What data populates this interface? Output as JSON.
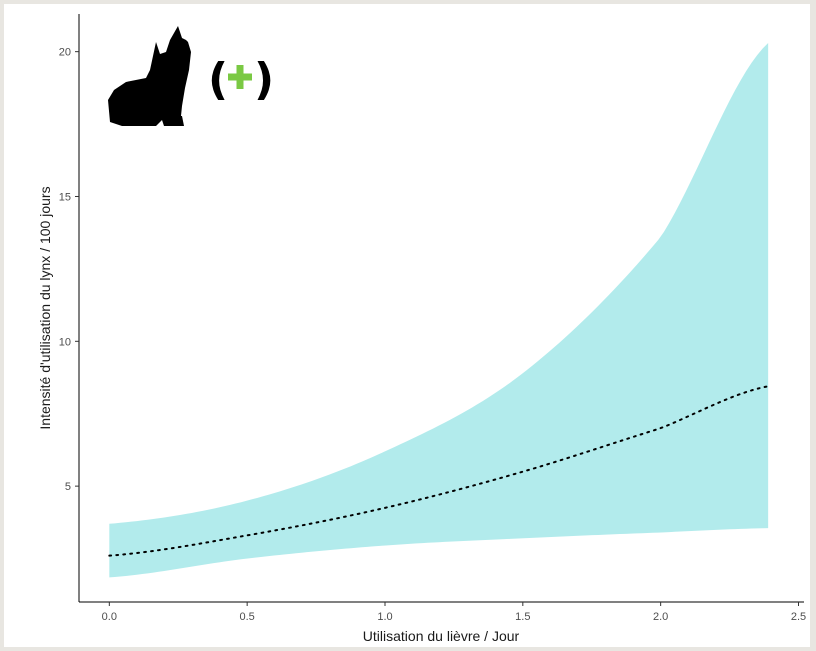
{
  "chart_data": {
    "type": "line",
    "title": "",
    "xlabel": "Utilisation du lièvre / Jour",
    "ylabel": "Intensité d'utilisation du lynx / 100 jours",
    "xlim": [
      -0.11,
      2.52
    ],
    "ylim": [
      1.0,
      21.3
    ],
    "x_ticks": [
      0.0,
      0.5,
      1.0,
      1.5,
      2.0,
      2.5
    ],
    "x_tick_labels": [
      "0.0",
      "0.5",
      "1.0",
      "1.5",
      "2.0",
      "2.5"
    ],
    "y_ticks": [
      5,
      10,
      15,
      20
    ],
    "y_tick_labels": [
      "5",
      "10",
      "15",
      "20"
    ],
    "grid": false,
    "series": [
      {
        "kind": "estimate",
        "line_style": "dotted",
        "color": "#000000",
        "x": [
          0.0,
          0.5,
          1.0,
          1.5,
          2.0,
          2.39
        ],
        "y": [
          2.6,
          3.3,
          4.25,
          5.5,
          7.0,
          8.45
        ]
      },
      {
        "kind": "ribbon-upper",
        "color": "#b2ebec",
        "x": [
          0.0,
          0.5,
          1.0,
          1.5,
          2.0,
          2.39
        ],
        "y": [
          3.7,
          4.5,
          6.2,
          8.9,
          13.6,
          20.3
        ]
      },
      {
        "kind": "ribbon-lower",
        "color": "#b2ebec",
        "x": [
          0.0,
          0.5,
          1.0,
          1.5,
          2.0,
          2.39
        ],
        "y": [
          1.85,
          2.5,
          2.95,
          3.2,
          3.4,
          3.55
        ]
      }
    ]
  },
  "annotation": {
    "icon": "lynx-silhouette-icon",
    "open_paren": "(",
    "sign": "+",
    "close_paren": ")",
    "sign_color": "#7ac943",
    "text_color": "#000000"
  }
}
